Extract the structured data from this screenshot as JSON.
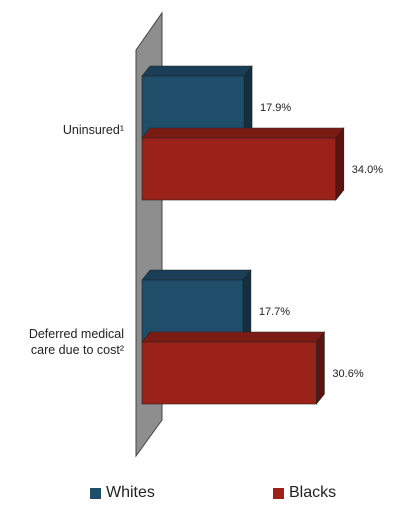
{
  "chart_data": {
    "type": "bar",
    "orientation": "horizontal",
    "style": "3d",
    "categories": [
      "Uninsured¹",
      "Deferred medical care due to cost²"
    ],
    "category_lines": [
      [
        "Uninsured¹"
      ],
      [
        "Deferred medical",
        "care due to cost²"
      ]
    ],
    "series": [
      {
        "name": "Whites",
        "values": [
          17.9,
          17.7
        ],
        "labels": [
          "17.9%",
          "17.7%"
        ],
        "color": "#1f4e6b"
      },
      {
        "name": "Blacks",
        "values": [
          34.0,
          30.6
        ],
        "labels": [
          "34.0%",
          "30.6%"
        ],
        "color": "#9b2219"
      }
    ],
    "xlim": [
      0,
      40
    ],
    "grid": false,
    "legend_position": "bottom"
  },
  "colors": {
    "whites": "#1f4e6b",
    "blacks": "#9b2219",
    "wall": "#8c8c8c"
  }
}
